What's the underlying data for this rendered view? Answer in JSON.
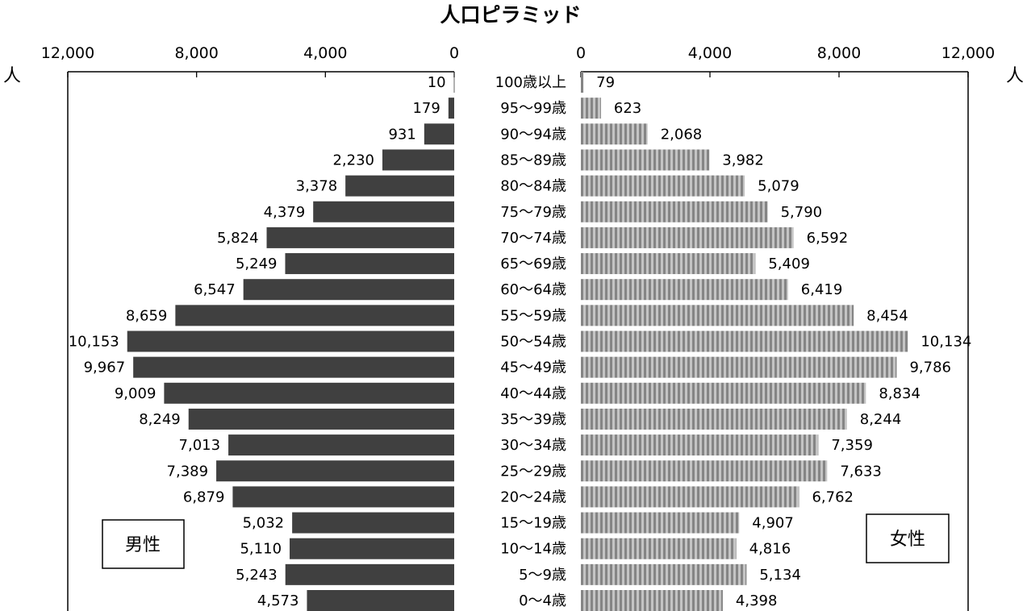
{
  "chart_data": {
    "type": "bar",
    "title": "人口ピラミッド",
    "unit_label": "人",
    "orientation": "horizontal-population-pyramid",
    "x_axis_max": 12000,
    "tick_values": [
      0,
      4000,
      8000,
      12000
    ],
    "tick_labels_left": [
      "12,000",
      "8,000",
      "4,000",
      "0"
    ],
    "tick_labels_right": [
      "0",
      "4,000",
      "8,000",
      "12,000"
    ],
    "grid": false,
    "categories": [
      "100歳以上",
      "95～99歳",
      "90～94歳",
      "85～89歳",
      "80～84歳",
      "75～79歳",
      "70～74歳",
      "65～69歳",
      "60～64歳",
      "55～59歳",
      "50～54歳",
      "45～49歳",
      "40～44歳",
      "35～39歳",
      "30～34歳",
      "25～29歳",
      "20～24歳",
      "15～19歳",
      "10～14歳",
      "5～9歳",
      "0～4歳"
    ],
    "series": [
      {
        "name": "男性",
        "side": "left",
        "color": "#404040",
        "values": [
          10,
          179,
          931,
          2230,
          3378,
          4379,
          5824,
          5249,
          6547,
          8659,
          10153,
          9967,
          9009,
          8249,
          7013,
          7389,
          6879,
          5032,
          5110,
          5243,
          4573
        ],
        "labels": [
          "10",
          "179",
          "931",
          "2,230",
          "3,378",
          "4,379",
          "5,824",
          "5,249",
          "6,547",
          "8,659",
          "10,153",
          "9,967",
          "9,009",
          "8,249",
          "7,013",
          "7,389",
          "6,879",
          "5,032",
          "5,110",
          "5,243",
          "4,573"
        ]
      },
      {
        "name": "女性",
        "side": "right",
        "color": "#9a9a9a",
        "values": [
          79,
          623,
          2068,
          3982,
          5079,
          5790,
          6592,
          5409,
          6419,
          8454,
          10134,
          9786,
          8834,
          8244,
          7359,
          7633,
          6762,
          4907,
          4816,
          5134,
          4398
        ],
        "labels": [
          "79",
          "623",
          "2,068",
          "3,982",
          "5,079",
          "5,790",
          "6,592",
          "5,409",
          "6,419",
          "8,454",
          "10,134",
          "9,786",
          "8,834",
          "8,244",
          "7,359",
          "7,633",
          "6,762",
          "4,907",
          "4,816",
          "5,134",
          "4,398"
        ]
      }
    ]
  }
}
